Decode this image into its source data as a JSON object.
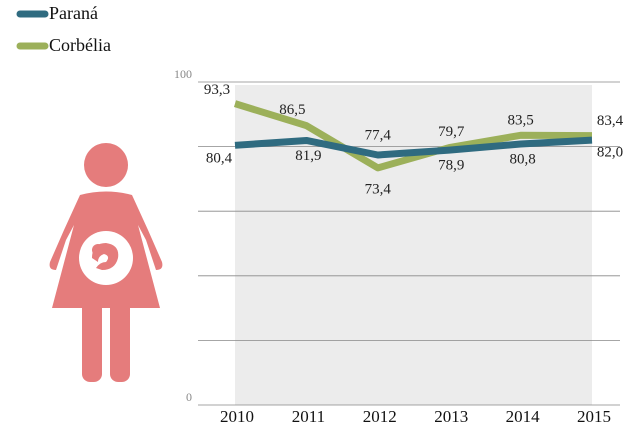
{
  "chart_data": {
    "type": "line",
    "categories": [
      "2010",
      "2011",
      "2012",
      "2013",
      "2014",
      "2015"
    ],
    "series": [
      {
        "name": "Paraná",
        "color": "#2f6b80",
        "values": [
          80.4,
          81.9,
          77.4,
          78.9,
          80.8,
          82.0
        ],
        "value_labels": [
          "80,4",
          "81,9",
          "77,4",
          "78,9",
          "80,8",
          "82,0"
        ]
      },
      {
        "name": "Corbélia",
        "color": "#9cb05a",
        "values": [
          93.3,
          86.5,
          73.4,
          79.7,
          83.5,
          83.4
        ],
        "value_labels": [
          "93,3",
          "86,5",
          "73,4",
          "79,7",
          "83,5",
          "83,4"
        ]
      }
    ],
    "ylim": [
      0,
      100
    ],
    "yticks": [
      0,
      100
    ],
    "ygrid": [
      0,
      20,
      40,
      60,
      80,
      100
    ],
    "grid": true
  }
}
